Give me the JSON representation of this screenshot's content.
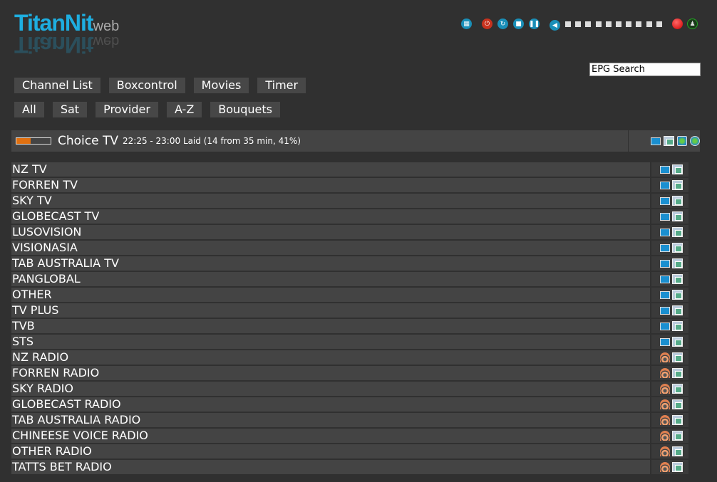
{
  "logo": {
    "main": "TitanNit",
    "sub": "web"
  },
  "controls": [
    "remote",
    "power",
    "restart",
    "standby",
    "pause",
    "volume",
    "record",
    "signal"
  ],
  "volume_steps": 10,
  "epg_search": {
    "value": "EPG Search"
  },
  "main_menu": [
    "Channel List",
    "Boxcontrol",
    "Movies",
    "Timer"
  ],
  "sub_menu": [
    "All",
    "Sat",
    "Provider",
    "A-Z",
    "Bouquets"
  ],
  "current": {
    "channel": "Choice TV",
    "info": "22:25 - 23:00 Laid (14 from 35 min, 41%)",
    "progress_percent": 41
  },
  "colors": {
    "accent": "#1eaee0",
    "progress": "#e07010"
  },
  "bouquets": [
    {
      "name": "NZ TV",
      "type": "tv"
    },
    {
      "name": "FORREN TV",
      "type": "tv"
    },
    {
      "name": "SKY TV",
      "type": "tv"
    },
    {
      "name": "GLOBECAST TV",
      "type": "tv"
    },
    {
      "name": "LUSOVISION",
      "type": "tv"
    },
    {
      "name": "VISIONASIA",
      "type": "tv"
    },
    {
      "name": "TAB AUSTRALIA TV",
      "type": "tv"
    },
    {
      "name": "PANGLOBAL",
      "type": "tv"
    },
    {
      "name": "OTHER",
      "type": "tv"
    },
    {
      "name": "TV PLUS",
      "type": "tv"
    },
    {
      "name": "TVB",
      "type": "tv"
    },
    {
      "name": "STS",
      "type": "tv"
    },
    {
      "name": "NZ RADIO",
      "type": "radio"
    },
    {
      "name": "FORREN RADIO",
      "type": "radio"
    },
    {
      "name": "SKY RADIO",
      "type": "radio"
    },
    {
      "name": "GLOBECAST RADIO",
      "type": "radio"
    },
    {
      "name": "TAB AUSTRALIA RADIO",
      "type": "radio"
    },
    {
      "name": "CHINEESE VOICE RADIO",
      "type": "radio"
    },
    {
      "name": "OTHER RADIO",
      "type": "radio"
    },
    {
      "name": "TATTS BET RADIO",
      "type": "radio"
    }
  ]
}
